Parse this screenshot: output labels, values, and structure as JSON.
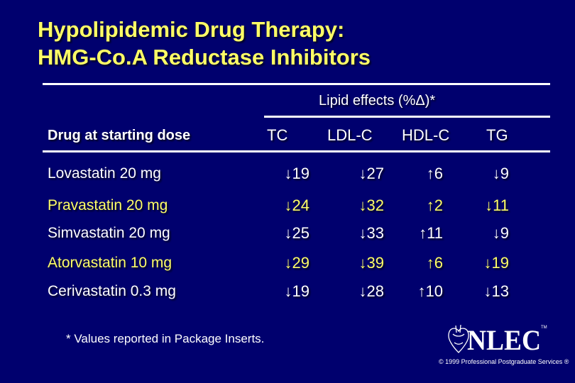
{
  "title_line1": "Hypolipidemic Drug Therapy:",
  "title_line2": "HMG-Co.A Reductase Inhibitors",
  "group_header": "Lipid effects (%Δ)*",
  "col_drug": "Drug at starting dose",
  "cols": [
    "TC",
    "LDL-C",
    "HDL-C",
    "TG"
  ],
  "rows": [
    {
      "drug": "Lovastatin 20 mg",
      "color": "#ffffff",
      "tc": "19",
      "ldl": "27",
      "hdl": "6",
      "tg": "9"
    },
    {
      "drug": "Pravastatin 20 mg",
      "color": "#ffff66",
      "tc": "24",
      "ldl": "32",
      "hdl": "2",
      "tg": "11"
    },
    {
      "drug": "Simvastatin 20 mg",
      "color": "#ffffff",
      "tc": "25",
      "ldl": "33",
      "hdl": "11",
      "tg": "9"
    },
    {
      "drug": "Atorvastatin 10 mg",
      "color": "#ffff66",
      "tc": "29",
      "ldl": "39",
      "hdl": "6",
      "tg": "19"
    },
    {
      "drug": "Cerivastatin 0.3 mg",
      "color": "#ffffff",
      "tc": "19",
      "ldl": "28",
      "hdl": "10",
      "tg": "13"
    }
  ],
  "arrow_down": "↓",
  "arrow_up": "↑",
  "footnote": "* Values reported in Package Inserts.",
  "logo_text": "NLEC",
  "logo_tm": "TM",
  "copyright": "© 1999 Professional Postgraduate Services ®",
  "colors": {
    "background": "#00006e",
    "title": "#ffff66",
    "text": "#ffffff"
  }
}
